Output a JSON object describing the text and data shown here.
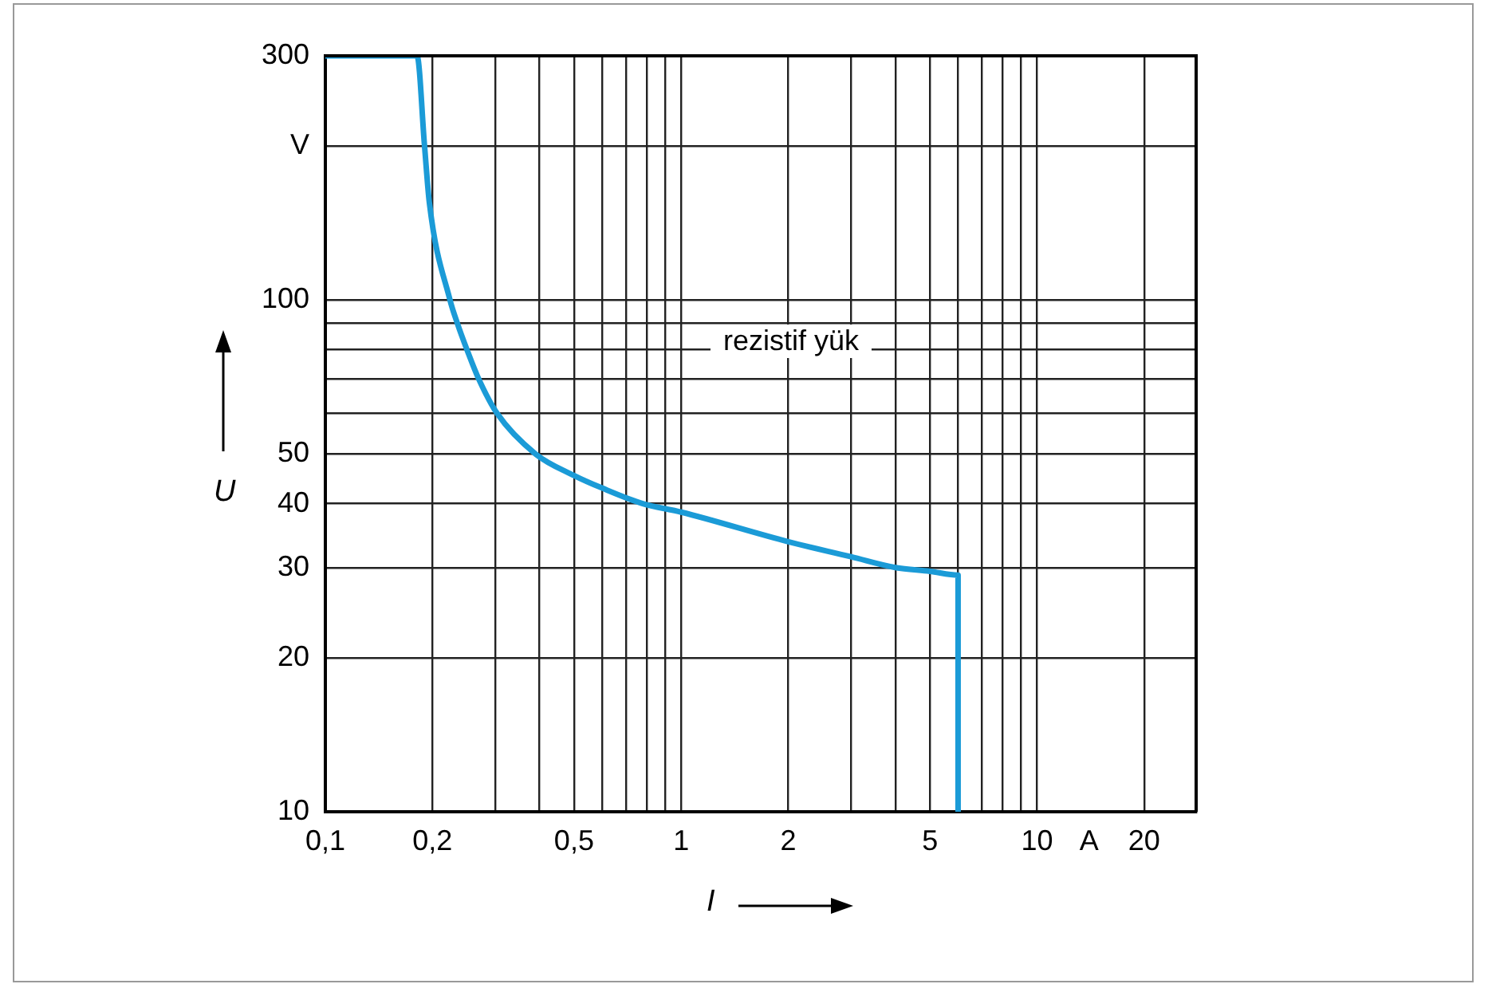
{
  "chart_data": {
    "type": "line",
    "xlabel": "I",
    "ylabel": "U",
    "annotations": [
      "rezistif yük"
    ],
    "series": [
      {
        "color": "#1b9bd7",
        "x": [
          0.1,
          0.181,
          0.19,
          0.196,
          0.224,
          0.235,
          0.25,
          0.27,
          0.304,
          0.39,
          0.5,
          0.6,
          0.78,
          1,
          2,
          3,
          4,
          5,
          6,
          6
        ],
        "values": [
          300,
          300,
          200,
          155,
          100,
          90,
          80,
          70,
          60,
          50,
          45.4,
          42.9,
          40,
          38.5,
          33.7,
          31.5,
          30,
          29.5,
          29,
          10
        ]
      }
    ],
    "xlim": [
      0.1,
      28
    ],
    "ylim": [
      10,
      300
    ],
    "xticks": [
      {
        "value": 0.1,
        "label": "0,1"
      },
      {
        "value": 0.2,
        "label": "0,2"
      },
      {
        "value": 0.3,
        "label": null
      },
      {
        "value": 0.4,
        "label": null
      },
      {
        "value": 0.5,
        "label": "0,5"
      },
      {
        "value": 0.6,
        "label": null
      },
      {
        "value": 0.7,
        "label": null
      },
      {
        "value": 0.8,
        "label": null
      },
      {
        "value": 0.9,
        "label": null
      },
      1,
      2,
      {
        "value": 3,
        "label": null
      },
      {
        "value": 4,
        "label": null
      },
      5,
      {
        "value": 6,
        "label": null
      },
      {
        "value": 7,
        "label": null
      },
      {
        "value": 8,
        "label": null
      },
      {
        "value": 9,
        "label": null
      },
      10,
      {
        "value": 14,
        "label": "A"
      },
      20
    ],
    "yticks": [
      10,
      20,
      30,
      40,
      50,
      {
        "value": 60,
        "label": null
      },
      {
        "value": 70,
        "label": null
      },
      {
        "value": 80,
        "label": null
      },
      {
        "value": 90,
        "label": null
      },
      100,
      {
        "value": 200,
        "label": "V"
      },
      300
    ],
    "log": "xy",
    "grid": true,
    "marker": "none",
    "line_style": "solid"
  }
}
